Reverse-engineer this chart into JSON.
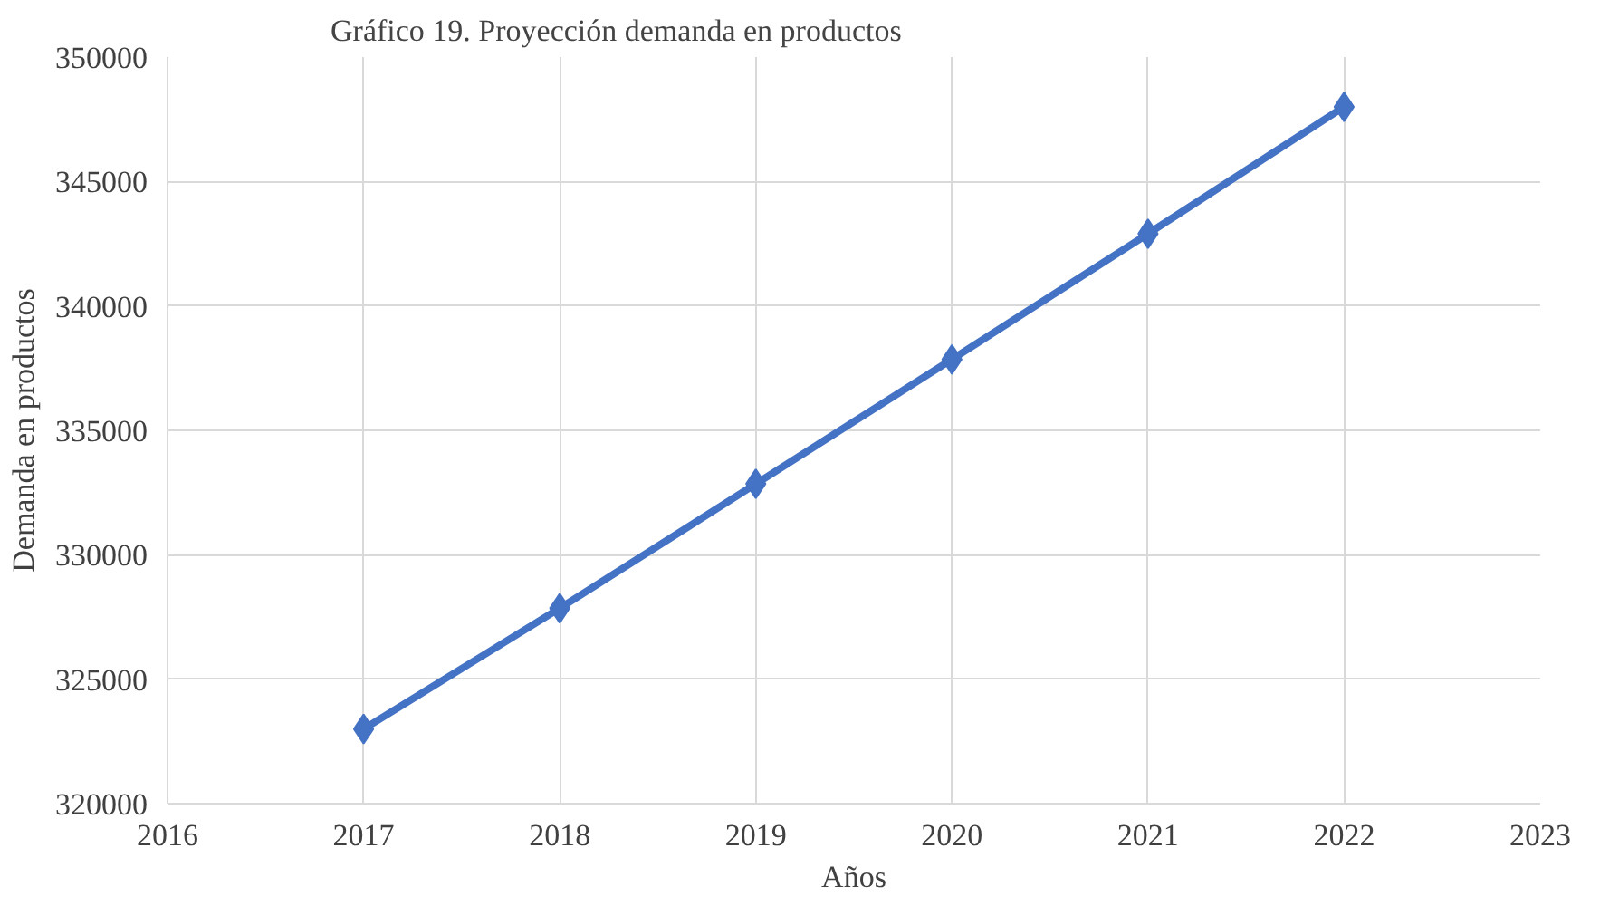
{
  "chart_data": {
    "type": "line",
    "title": "Gráfico 19. Proyección demanda en productos",
    "xlabel": "Años",
    "ylabel": "Demanda en productos",
    "x": [
      2017,
      2018,
      2019,
      2020,
      2021,
      2022
    ],
    "series": [
      {
        "color": "#4472c4",
        "values": [
          323000,
          327850,
          332850,
          337850,
          342900,
          348000
        ]
      }
    ],
    "xlim": [
      2016,
      2023
    ],
    "xticks": [
      2016,
      2017,
      2018,
      2019,
      2020,
      2021,
      2022,
      2023
    ],
    "ylim": [
      320000,
      350000
    ],
    "yticks": [
      320000,
      325000,
      330000,
      335000,
      340000,
      345000,
      350000
    ],
    "grid": true,
    "marker": "diamond",
    "line_style": "solid"
  }
}
